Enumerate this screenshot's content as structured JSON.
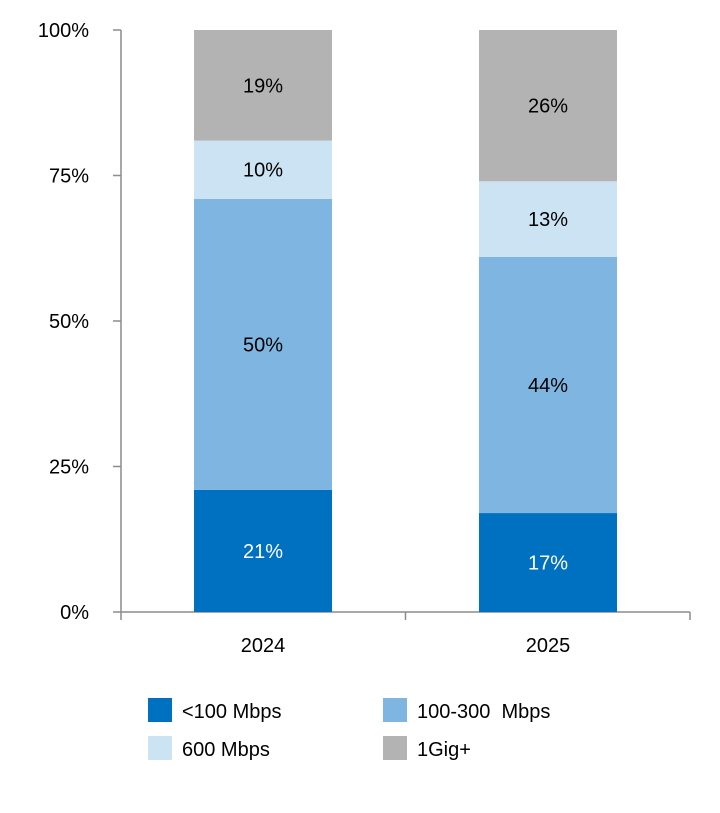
{
  "chart_data": {
    "type": "bar",
    "stacked": true,
    "categories": [
      "2024",
      "2025"
    ],
    "series": [
      {
        "name": "<100 Mbps",
        "values": [
          21,
          17
        ],
        "labels": [
          "21%",
          "17%"
        ],
        "color": "#0070C0",
        "label_color": "#ffffff"
      },
      {
        "name": "100-300  Mbps",
        "values": [
          50,
          44
        ],
        "labels": [
          "50%",
          "44%"
        ],
        "color": "#7FB6E1",
        "label_color": "#000000"
      },
      {
        "name": "600 Mbps",
        "values": [
          10,
          13
        ],
        "labels": [
          "10%",
          "13%"
        ],
        "color": "#CCE3F3",
        "label_color": "#000000"
      },
      {
        "name": "1Gig+",
        "values": [
          19,
          26
        ],
        "labels": [
          "19%",
          "26%"
        ],
        "color": "#B3B3B3",
        "label_color": "#000000"
      }
    ],
    "ylim": [
      0,
      100
    ],
    "yticks": [
      0,
      25,
      50,
      75,
      100
    ],
    "ytick_labels": [
      "0%",
      "25%",
      "50%",
      "75%",
      "100%"
    ],
    "grid": false,
    "legend_position": "bottom",
    "title": "",
    "xlabel": "",
    "ylabel": ""
  }
}
